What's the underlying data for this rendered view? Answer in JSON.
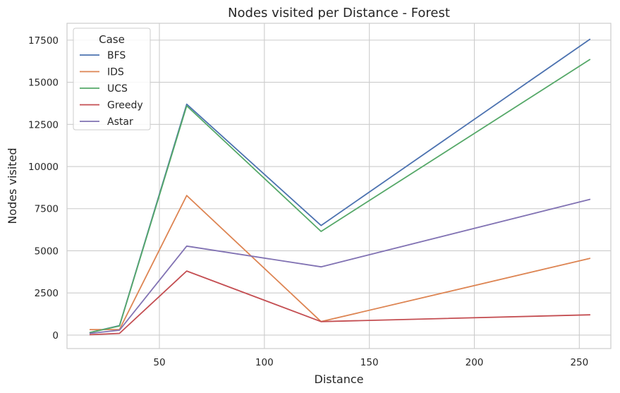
{
  "chart_data": {
    "type": "line",
    "title": "Nodes visited per Distance - Forest",
    "xlabel": "Distance",
    "ylabel": "Nodes visited",
    "x": [
      17,
      31,
      63,
      127,
      255
    ],
    "xlim": [
      6,
      265
    ],
    "ylim": [
      -800,
      18500
    ],
    "xticks": [
      50,
      100,
      150,
      200,
      250
    ],
    "yticks": [
      0,
      2500,
      5000,
      7500,
      10000,
      12500,
      15000,
      17500
    ],
    "grid": true,
    "legend": {
      "title": "Case",
      "placement": "top-left"
    },
    "series": [
      {
        "name": "BFS",
        "color": "#4c72b0",
        "values": [
          150,
          560,
          13700,
          6500,
          17550
        ]
      },
      {
        "name": "IDS",
        "color": "#dd8452",
        "values": [
          320,
          330,
          8280,
          800,
          4550
        ]
      },
      {
        "name": "UCS",
        "color": "#55a868",
        "values": [
          150,
          540,
          13600,
          6150,
          16350
        ]
      },
      {
        "name": "Greedy",
        "color": "#c44e52",
        "values": [
          20,
          100,
          3800,
          800,
          1200
        ]
      },
      {
        "name": "Astar",
        "color": "#8172b3",
        "values": [
          100,
          290,
          5280,
          4050,
          8050
        ]
      }
    ]
  }
}
